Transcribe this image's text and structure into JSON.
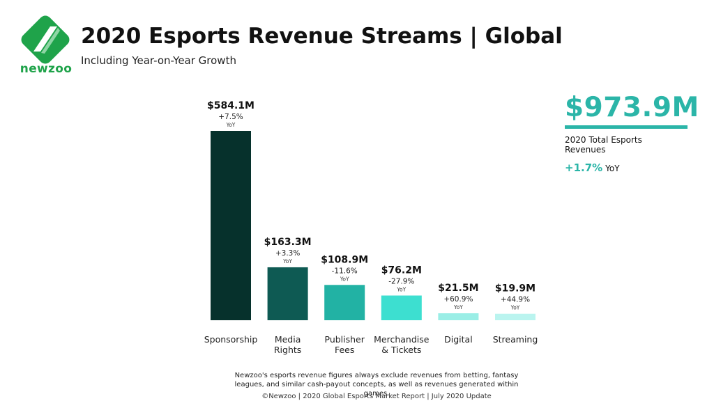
{
  "brand": {
    "name": "newzoo",
    "accent": "#1fa34a"
  },
  "header": {
    "title": "2020 Esports Revenue Streams | Global",
    "subtitle": "Including Year-on-Year Growth"
  },
  "total": {
    "value": "$973.9M",
    "label": "2020 Total Esports Revenues",
    "growth": "+1.7%",
    "growth_unit": "YoY",
    "accent": "#2bb5a8"
  },
  "chart_data": {
    "type": "bar",
    "categories": [
      "Sponsorship",
      "Media Rights",
      "Publisher Fees",
      "Merchandise & Tickets",
      "Digital",
      "Streaming"
    ],
    "category_lines": [
      [
        "Sponsorship"
      ],
      [
        "Media",
        "Rights"
      ],
      [
        "Publisher",
        "Fees"
      ],
      [
        "Merchandise",
        "& Tickets"
      ],
      [
        "Digital"
      ],
      [
        "Streaming"
      ]
    ],
    "values": [
      584.1,
      163.3,
      108.9,
      76.2,
      21.5,
      19.9
    ],
    "value_labels": [
      "$584.1M",
      "$163.3M",
      "$108.9M",
      "$76.2M",
      "$21.5M",
      "$19.9M"
    ],
    "growth_labels": [
      "+7.5%",
      "+3.3%",
      "-11.6%",
      "-27.9%",
      "+60.9%",
      "+44.9%"
    ],
    "growth_unit": "YoY",
    "colors": [
      "#06312c",
      "#0e5a53",
      "#22b2a4",
      "#3ddfd0",
      "#9aeee6",
      "#baf4ef"
    ],
    "ylim": [
      0,
      584.1
    ],
    "grid": false
  },
  "footer": {
    "note": "Newzoo's esports revenue figures always exclude revenues from betting, fantasy leagues, and similar cash-payout concepts, as well as revenues generated within games.",
    "credit": "©Newzoo | 2020 Global Esports Market Report | July 2020 Update"
  }
}
